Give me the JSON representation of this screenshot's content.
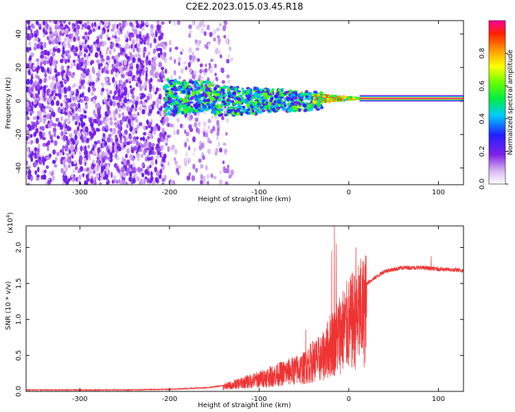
{
  "figure": {
    "title": "C2E2.2023.015.03.45.R18"
  },
  "chart_data": [
    {
      "type": "heatmap",
      "xlabel": "Height of straight line (km)",
      "ylabel": "Frequency (Hz)",
      "xlim": [
        -360,
        128
      ],
      "ylim": [
        -50,
        48
      ],
      "x_ticks": [
        -300,
        -200,
        -100,
        0,
        100
      ],
      "y_ticks": [
        -40,
        -20,
        0,
        20,
        40
      ],
      "grid": false,
      "colorbar": {
        "label": "Normalized spectral amplitude",
        "range": [
          0,
          1
        ],
        "ticks": [
          "0.0",
          "0.2",
          "0.4",
          "0.6",
          "0.8"
        ],
        "tick_values": [
          0,
          0.2,
          0.4,
          0.6,
          0.8
        ],
        "colormap": "rainbow (white-violet-blue-cyan-green-yellow-red-magenta)"
      },
      "regions": [
        {
          "x": [
            -360,
            -205
          ],
          "freq": [
            -50,
            48
          ],
          "amplitude": 0.15,
          "texture": "dense speckle"
        },
        {
          "x": [
            -200,
            -130
          ],
          "freq": [
            -50,
            48
          ],
          "amplitude": 0.1,
          "texture": "sparse speckle"
        },
        {
          "x": [
            -205,
            -30
          ],
          "freq": [
            -12,
            10
          ],
          "amplitude": 0.4,
          "texture": "signal blobs"
        },
        {
          "x": [
            -40,
            12
          ],
          "freq": [
            -3,
            5
          ],
          "amplitude": 0.7,
          "texture": "narrowing band"
        },
        {
          "x": [
            12,
            128
          ],
          "freq": [
            0,
            3
          ],
          "amplitude": 1.0,
          "texture": "steady line at ~1.5 Hz"
        }
      ]
    },
    {
      "type": "line",
      "xlabel": "Height of straight line (km)",
      "ylabel": "SNR (10 * v/v)",
      "y_multiplier": "(x10",
      "y_multiplier_exp": "4",
      "xlim": [
        -360,
        128
      ],
      "ylim": [
        0,
        2.3
      ],
      "x_ticks": [
        -300,
        -200,
        -100,
        0,
        100
      ],
      "y_ticks": [
        "0.0",
        "0.5",
        "1.0",
        "1.5",
        "2.0"
      ],
      "y_tick_values": [
        0,
        0.5,
        1.0,
        1.5,
        2.0
      ],
      "grid": false,
      "series": [
        {
          "color": "#ee3333",
          "envelope_x": [
            -360,
            -250,
            -200,
            -160,
            -140,
            -120,
            -100,
            -80,
            -60,
            -50,
            -45,
            -40,
            -30,
            -25,
            -20,
            -15,
            -10,
            0,
            10,
            20,
            40,
            60,
            80,
            100,
            128
          ],
          "envelope_y": [
            0.02,
            0.02,
            0.03,
            0.05,
            0.08,
            0.15,
            0.22,
            0.3,
            0.38,
            0.42,
            0.48,
            0.55,
            0.6,
            0.72,
            0.85,
            0.95,
            1.05,
            1.2,
            1.35,
            1.5,
            1.67,
            1.72,
            1.72,
            1.7,
            1.68
          ],
          "spikes": [
            {
              "x": -48,
              "y": 0.86
            },
            {
              "x": -19,
              "y": 1.95
            },
            {
              "x": -16,
              "y": 2.3
            },
            {
              "x": -14,
              "y": 2.05
            },
            {
              "x": 8,
              "y": 2.0
            },
            {
              "x": 92,
              "y": 1.88
            }
          ]
        }
      ]
    }
  ]
}
